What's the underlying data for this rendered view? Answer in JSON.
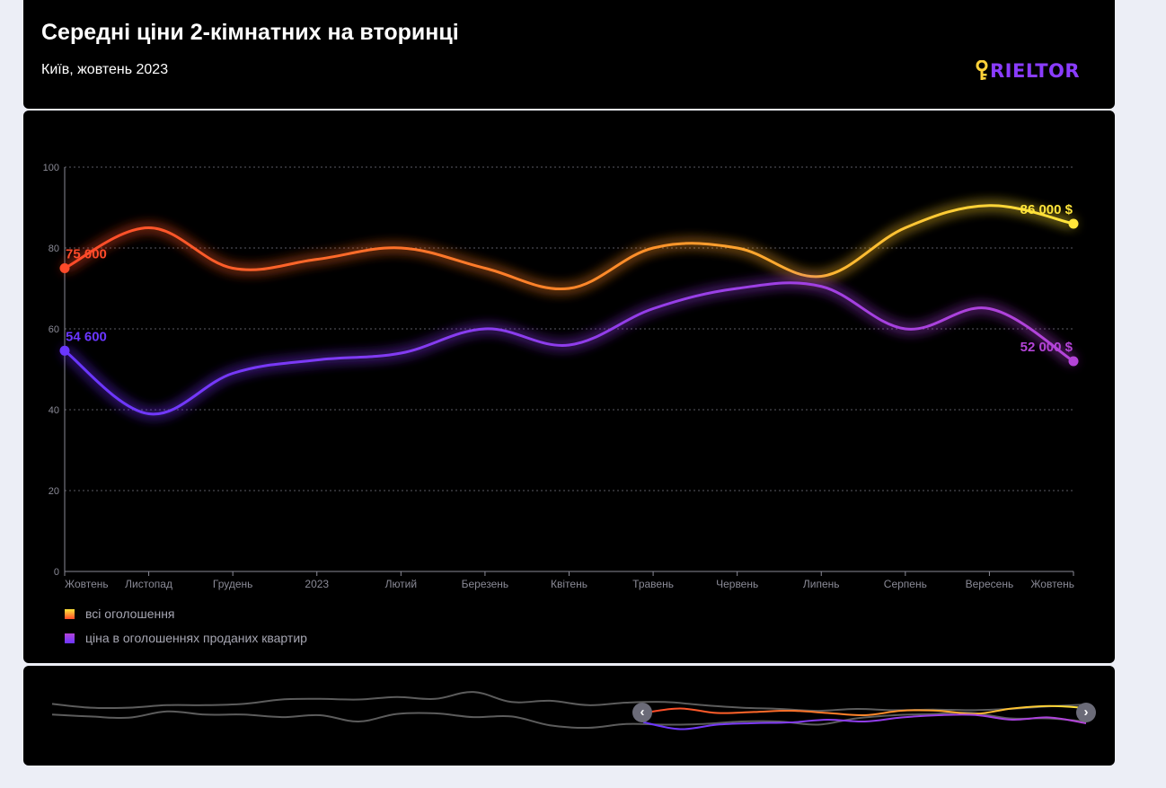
{
  "header": {
    "title": "Середні ціни 2-кімнатних на вторинці",
    "subtitle": "Київ, жовтень 2023",
    "logo_text": "RIELTOR",
    "logo_icon": "key-icon"
  },
  "colors": {
    "background": "#000000",
    "all_gradient_start": "#ff4a2a",
    "all_gradient_mid": "#ff8c2a",
    "all_gradient_end": "#ffe53a",
    "sold_gradient_start": "#6a36ff",
    "sold_gradient_end": "#b444d8",
    "axis": "#8a8a96",
    "grid": "#5a5a64",
    "navigator_line": "#5c5c5c"
  },
  "chart_data": {
    "type": "line",
    "categories": [
      "Жовтень",
      "Листопад",
      "Грудень",
      "2023",
      "Лютий",
      "Березень",
      "Квітень",
      "Травень",
      "Червень",
      "Липень",
      "Серпень",
      "Вересень",
      "Жовтень"
    ],
    "yticks": [
      0,
      20,
      40,
      60,
      80,
      100
    ],
    "ylim": [
      0,
      100
    ],
    "grid": true,
    "legend_position": "bottom-left",
    "series": [
      {
        "name": "всі оголошення",
        "values": [
          75,
          85,
          75,
          77.2,
          80,
          75,
          70,
          80,
          80,
          73,
          85,
          90.5,
          86
        ],
        "first_label": "75 000",
        "last_label": "86 000 $"
      },
      {
        "name": "ціна в оголошеннях проданих квартир",
        "values": [
          54.6,
          39,
          49,
          52.3,
          54,
          60,
          56,
          65,
          70,
          70.5,
          60,
          65,
          52
        ],
        "first_label": "54 600",
        "last_label": "52 000 $"
      }
    ]
  },
  "navigator": {
    "history_series_a": [
      88,
      82,
      82,
      86,
      86,
      88,
      95,
      96,
      95,
      99,
      96,
      107,
      91,
      93,
      86,
      90,
      91,
      86,
      82,
      80,
      77,
      80,
      78,
      79,
      78,
      80,
      84,
      87
    ],
    "history_series_b": [
      71,
      68,
      66,
      76,
      71,
      71,
      67,
      70,
      60,
      72,
      73,
      67,
      68,
      54,
      50,
      56,
      55,
      56,
      60,
      60,
      55,
      65,
      70,
      72,
      74,
      65,
      65,
      60
    ],
    "prev_icon": "chevron-left-icon",
    "next_icon": "chevron-right-icon"
  }
}
